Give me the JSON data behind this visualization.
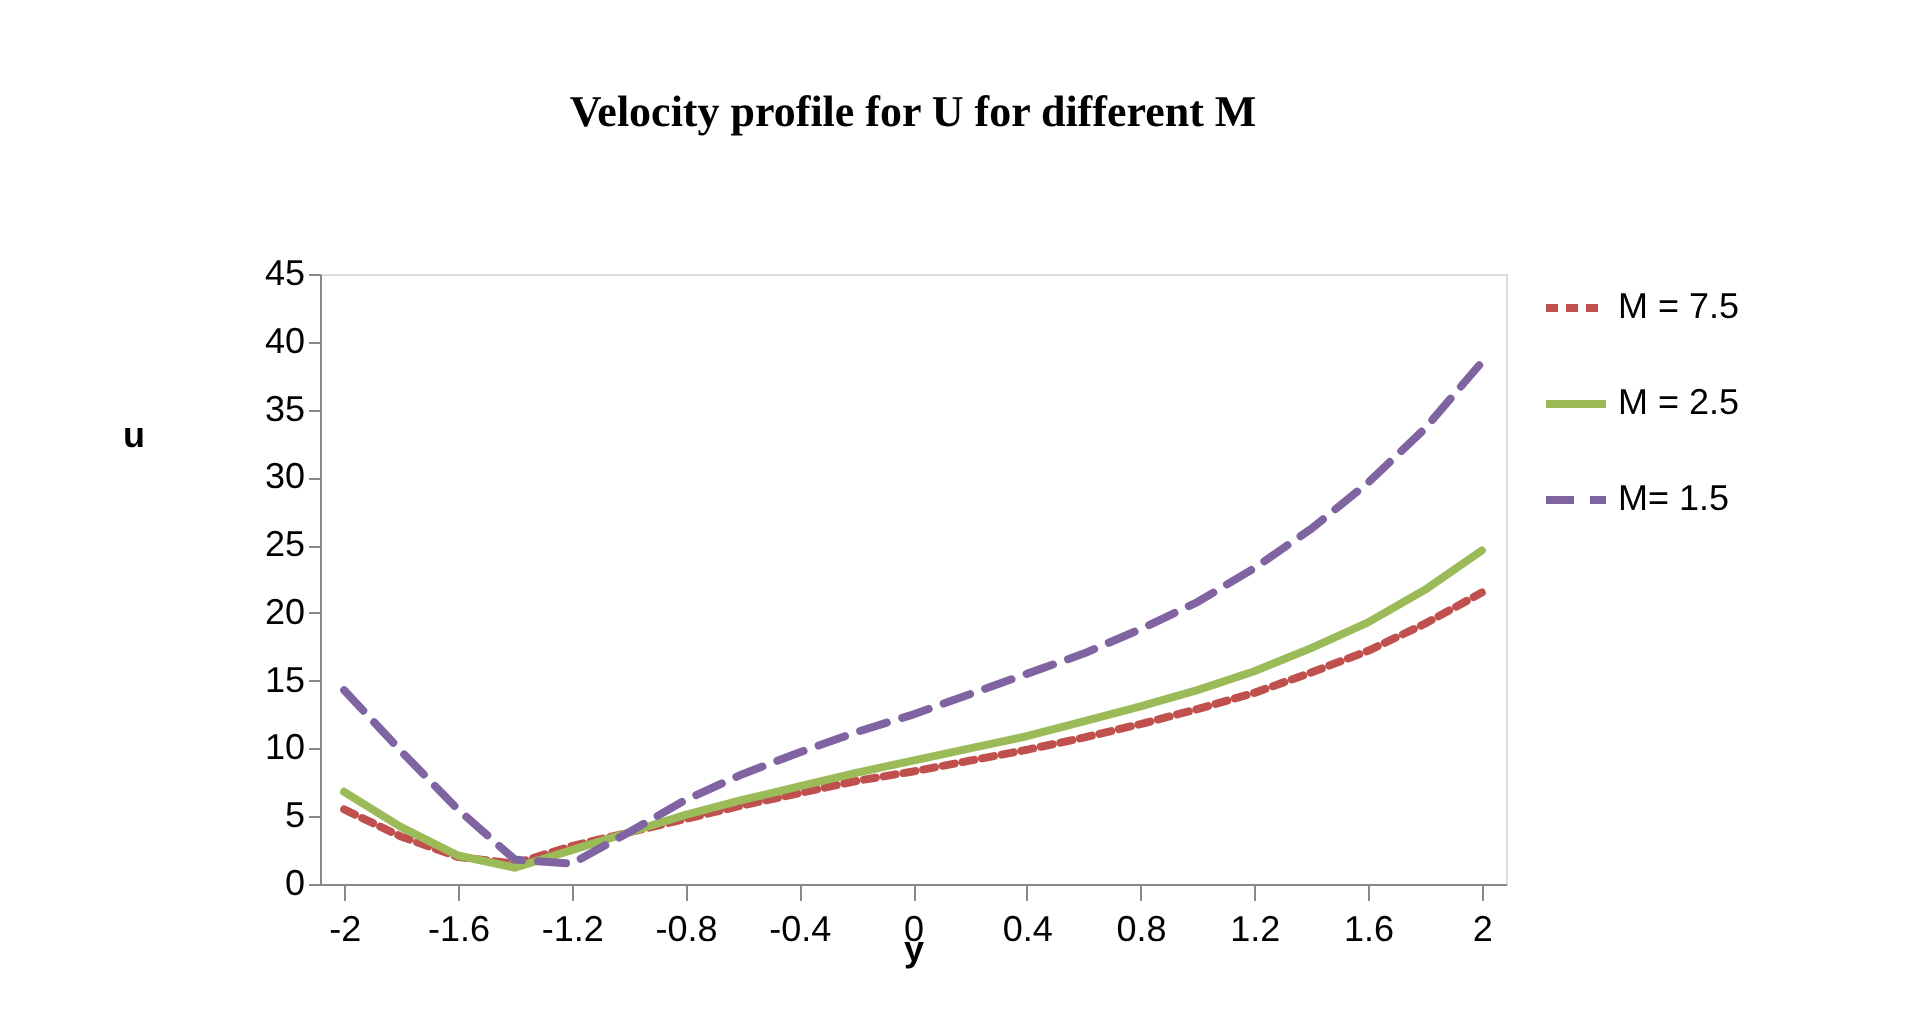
{
  "chart_data": {
    "type": "line",
    "title": "Velocity profile for U for different M",
    "xlabel": "y",
    "ylabel": "u",
    "x": [
      -2,
      -1.8,
      -1.6,
      -1.4,
      -1.2,
      -1,
      -0.8,
      -0.6,
      -0.4,
      -0.2,
      0,
      0.2,
      0.4,
      0.6,
      0.8,
      1,
      1.2,
      1.4,
      1.6,
      1.8,
      2
    ],
    "series": [
      {
        "name": "M = 7.5",
        "color": "#c0504d",
        "line_style": "dotted",
        "values": [
          5.5,
          3.5,
          2,
          1.5,
          2.8,
          3.8,
          4.8,
          5.8,
          6.7,
          7.6,
          8.3,
          9.1,
          9.9,
          10.8,
          11.8,
          12.9,
          14.1,
          15.6,
          17.2,
          19.2,
          21.5
        ]
      },
      {
        "name": "M = 2.5",
        "color": "#9bbb59",
        "line_style": "solid",
        "values": [
          6.8,
          4.2,
          2.1,
          1.2,
          2.5,
          3.8,
          5.1,
          6.2,
          7.2,
          8.2,
          9.1,
          10,
          10.9,
          12,
          13.1,
          14.3,
          15.7,
          17.4,
          19.3,
          21.7,
          24.6
        ]
      },
      {
        "name": "M= 1.5",
        "color": "#8064a2",
        "line_style": "dashed",
        "values": [
          14.3,
          9.8,
          5.5,
          1.8,
          1.5,
          3.8,
          6.2,
          8.1,
          9.7,
          11.2,
          12.5,
          14,
          15.5,
          17,
          18.8,
          20.8,
          23.3,
          26.2,
          29.6,
          33.6,
          38.5
        ]
      }
    ],
    "xlim": [
      -2.085,
      2.085
    ],
    "xticks": [
      -2,
      -1.6,
      -1.2,
      -0.8,
      -0.4,
      0,
      0.4,
      0.8,
      1.2,
      1.6,
      2
    ],
    "ylim": [
      0,
      45
    ],
    "yticks": [
      0,
      5,
      10,
      15,
      20,
      25,
      30,
      35,
      40,
      45
    ],
    "grid": false,
    "legend": "right"
  }
}
